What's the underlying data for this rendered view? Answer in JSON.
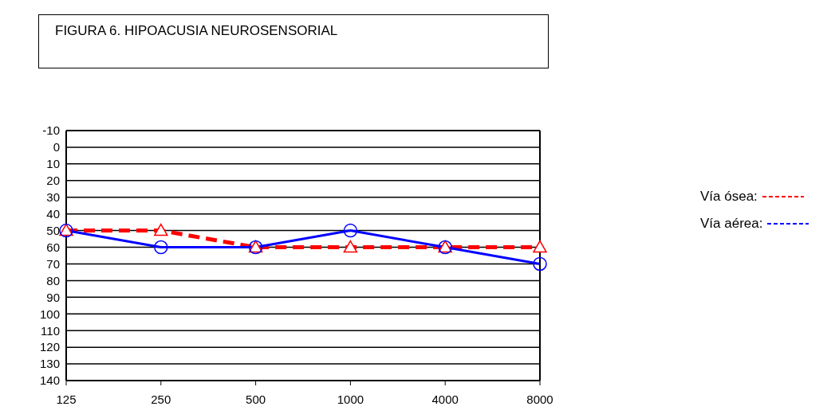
{
  "chart_data": {
    "type": "line",
    "title": "FIGURA 6. HIPOACUSIA NEUROSENSORIAL",
    "categories": [
      "125",
      "250",
      "500",
      "1000",
      "4000",
      "8000"
    ],
    "series": [
      {
        "name": "Vía ósea:",
        "color": "#ff0000",
        "values": [
          50,
          50,
          60,
          60,
          60,
          60
        ],
        "line_style": "dashed",
        "marker": "triangle"
      },
      {
        "name": "Vía aérea:",
        "color": "#0000ff",
        "values": [
          50,
          60,
          60,
          50,
          60,
          70
        ],
        "line_style": "solid",
        "marker": "circle"
      }
    ],
    "ylim": [
      140,
      -10
    ],
    "yticks": [
      -10,
      0,
      10,
      20,
      30,
      40,
      50,
      60,
      70,
      80,
      90,
      100,
      110,
      120,
      130,
      140
    ],
    "grid": "y",
    "legend": "right"
  }
}
